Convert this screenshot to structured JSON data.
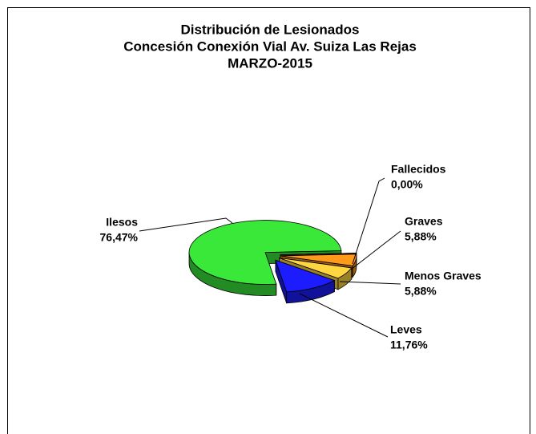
{
  "chart_data": {
    "type": "pie3d",
    "title": [
      "Distribución de Lesionados",
      "Concesión Conexión Vial Av. Suiza Las Rejas",
      "MARZO-2015"
    ],
    "categories": [
      "Fallecidos",
      "Graves",
      "Menos Graves",
      "Leves",
      "Ilesos"
    ],
    "values": [
      0,
      5.88,
      5.88,
      11.76,
      76.47
    ],
    "value_labels": [
      "0,00%",
      "5,88%",
      "5,88%",
      "11,76%",
      "76,47%"
    ],
    "colors": [
      "#e0301e",
      "#ff9a1a",
      "#ffd640",
      "#1c1cff",
      "#3ae83a"
    ]
  }
}
